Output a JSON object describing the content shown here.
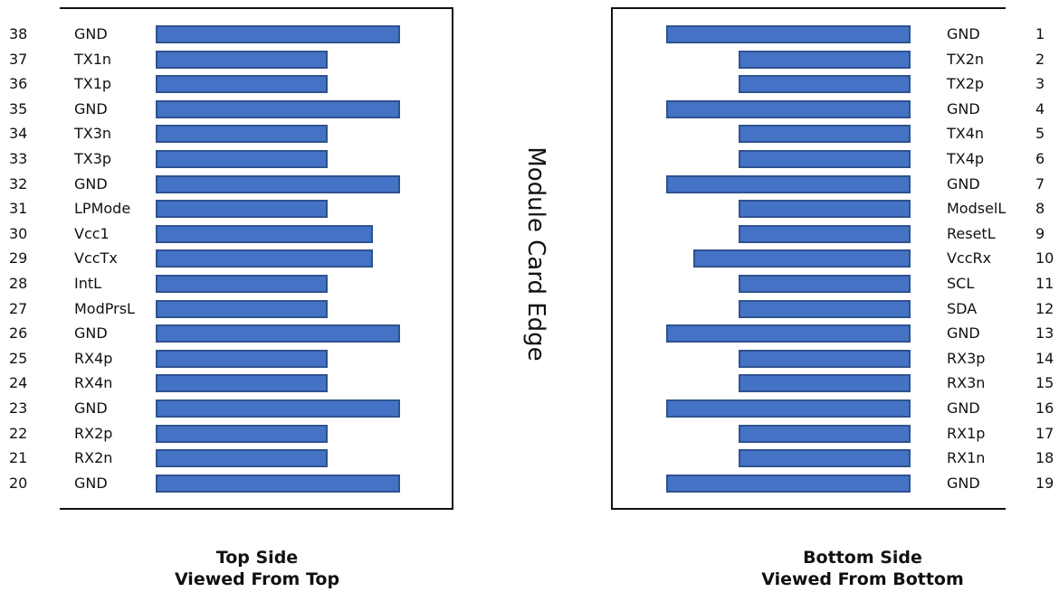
{
  "center_label": "Module Card Edge",
  "top_side": {
    "caption_line1": "Top Side",
    "caption_line2": "Viewed From Top",
    "pins": [
      {
        "pin": "38",
        "signal": "GND"
      },
      {
        "pin": "37",
        "signal": "TX1n"
      },
      {
        "pin": "36",
        "signal": "TX1p"
      },
      {
        "pin": "35",
        "signal": "GND"
      },
      {
        "pin": "34",
        "signal": "TX3n"
      },
      {
        "pin": "33",
        "signal": "TX3p"
      },
      {
        "pin": "32",
        "signal": "GND"
      },
      {
        "pin": "31",
        "signal": "LPMode"
      },
      {
        "pin": "30",
        "signal": "Vcc1"
      },
      {
        "pin": "29",
        "signal": "VccTx"
      },
      {
        "pin": "28",
        "signal": "IntL"
      },
      {
        "pin": "27",
        "signal": "ModPrsL"
      },
      {
        "pin": "26",
        "signal": "GND"
      },
      {
        "pin": "25",
        "signal": "RX4p"
      },
      {
        "pin": "24",
        "signal": "RX4n"
      },
      {
        "pin": "23",
        "signal": "GND"
      },
      {
        "pin": "22",
        "signal": "RX2p"
      },
      {
        "pin": "21",
        "signal": "RX2n"
      },
      {
        "pin": "20",
        "signal": "GND"
      }
    ]
  },
  "bottom_side": {
    "caption_line1": "Bottom Side",
    "caption_line2": "Viewed From Bottom",
    "pins": [
      {
        "pin": "1",
        "signal": "GND"
      },
      {
        "pin": "2",
        "signal": "TX2n"
      },
      {
        "pin": "3",
        "signal": "TX2p"
      },
      {
        "pin": "4",
        "signal": "GND"
      },
      {
        "pin": "5",
        "signal": "TX4n"
      },
      {
        "pin": "6",
        "signal": "TX4p"
      },
      {
        "pin": "7",
        "signal": "GND"
      },
      {
        "pin": "8",
        "signal": "ModselL"
      },
      {
        "pin": "9",
        "signal": "ResetL"
      },
      {
        "pin": "10",
        "signal": "VccRx"
      },
      {
        "pin": "11",
        "signal": "SCL"
      },
      {
        "pin": "12",
        "signal": "SDA"
      },
      {
        "pin": "13",
        "signal": "GND"
      },
      {
        "pin": "14",
        "signal": "RX3p"
      },
      {
        "pin": "15",
        "signal": "RX3n"
      },
      {
        "pin": "16",
        "signal": "GND"
      },
      {
        "pin": "17",
        "signal": "RX1p"
      },
      {
        "pin": "18",
        "signal": "RX1n"
      },
      {
        "pin": "19",
        "signal": "GND"
      }
    ]
  },
  "colors": {
    "pad_fill": "#4472c4",
    "pad_border": "#2f528f",
    "outline": "#111111"
  }
}
